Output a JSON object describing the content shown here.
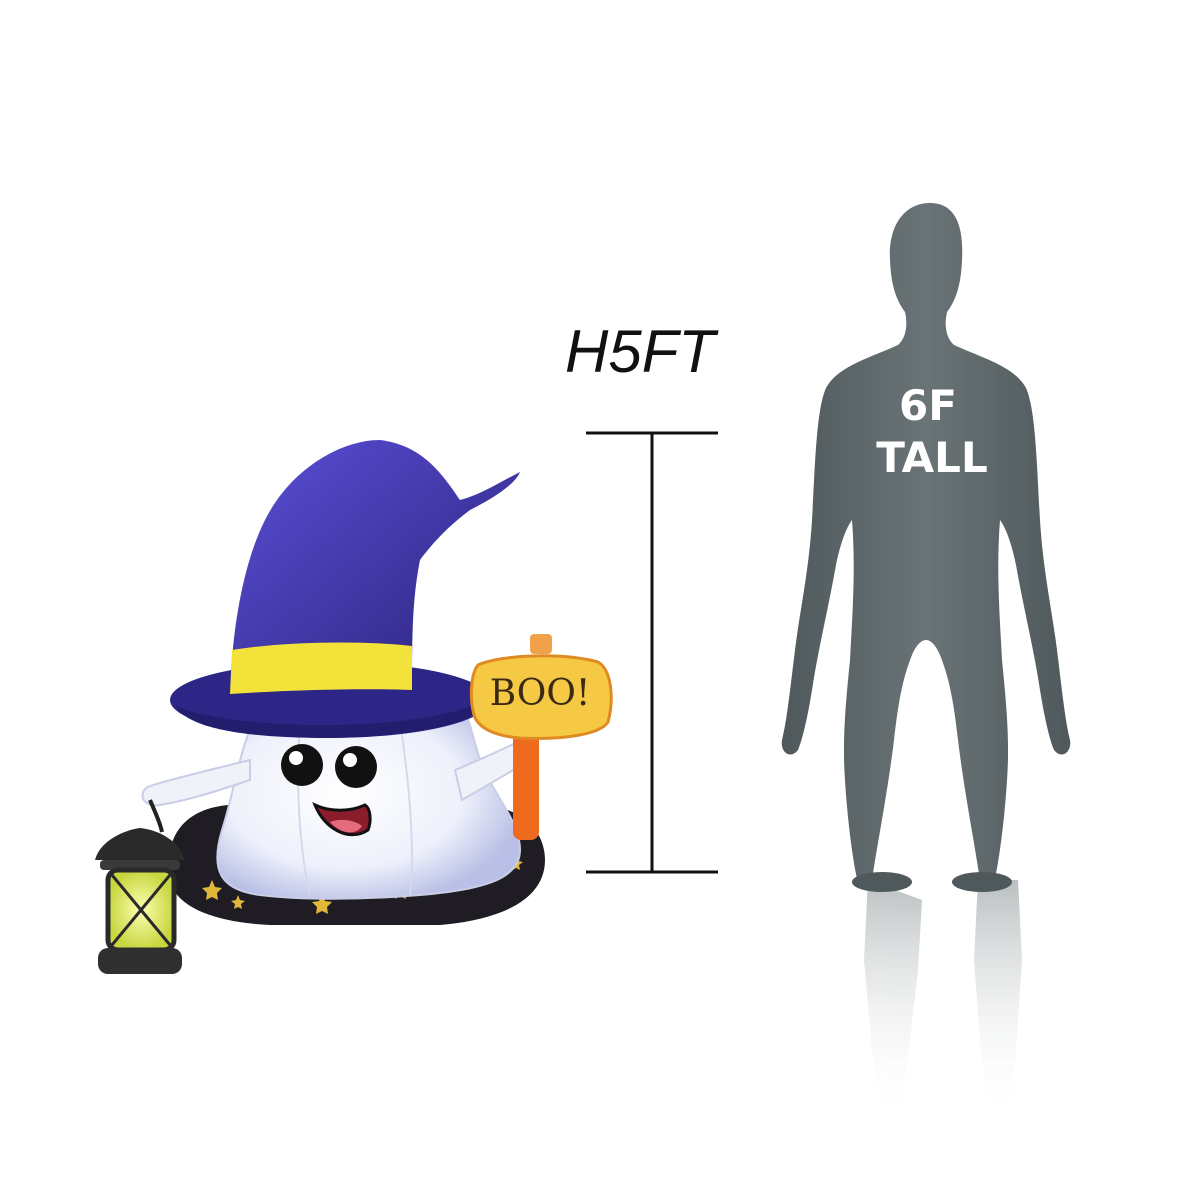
{
  "measurement": {
    "height_label": "H5FT"
  },
  "person": {
    "label_line1": "6F",
    "label_line2": "TALL"
  },
  "ghost": {
    "sign_text": "BOO!"
  },
  "colors": {
    "hat": "#3d33a8",
    "hat_band": "#f2e23a",
    "ghost_body": "#f2f5fb",
    "sign": "#f6c944",
    "sign_post": "#f06a1e",
    "base": "#1f1c24",
    "person": "#5a6466",
    "scale_line": "#111111"
  }
}
